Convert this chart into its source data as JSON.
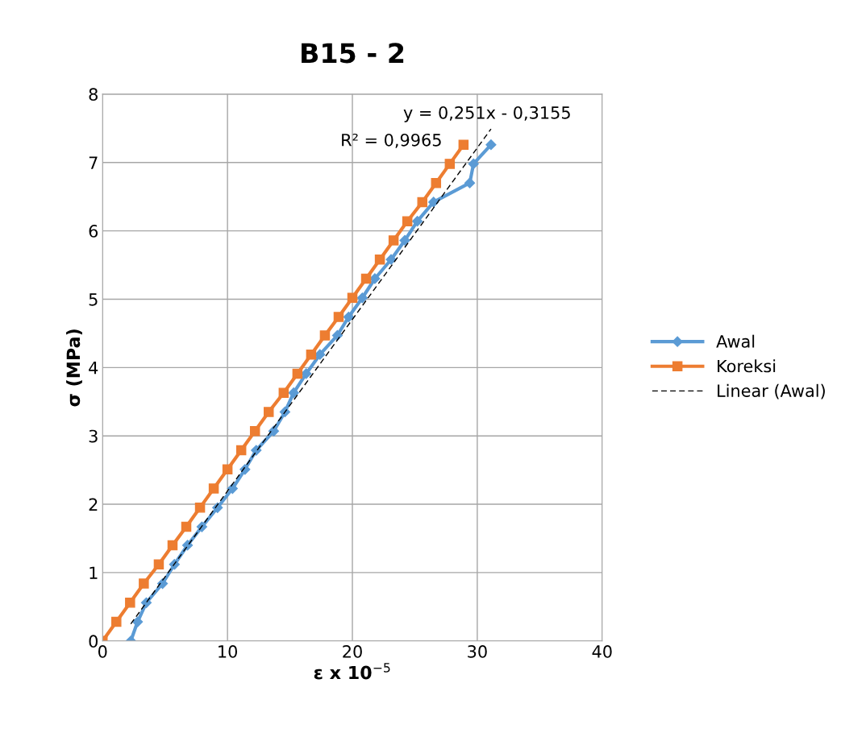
{
  "chart_data": {
    "type": "line",
    "title": "B15 - 2",
    "xlabel": "ε x 10$^{−5}$",
    "ylabel": "σ (MPa)",
    "xlim": [
      0,
      40
    ],
    "xticks": [
      0,
      10,
      20,
      30,
      40
    ],
    "ylim": [
      0,
      8
    ],
    "yticks": [
      0,
      1,
      2,
      3,
      4,
      5,
      6,
      7,
      8
    ],
    "grid": true,
    "legend": "right",
    "annotations": [
      "y = 0,251x - 0,3155",
      "R² = 0,9965"
    ],
    "series": [
      {
        "name": "Awal",
        "color": "#5b9bd5",
        "marker": "diamond",
        "line_style": "solid",
        "x": [
          2.26,
          2.8,
          3.5,
          4.8,
          5.75,
          6.8,
          7.95,
          9.2,
          10.4,
          11.4,
          12.3,
          13.7,
          14.6,
          15.3,
          16.3,
          17.4,
          18.8,
          19.7,
          20.8,
          21.8,
          23.1,
          24.2,
          25.2,
          26.5,
          29.4,
          29.7,
          31.1
        ],
        "values": [
          0,
          0.28,
          0.56,
          0.84,
          1.12,
          1.4,
          1.67,
          1.95,
          2.23,
          2.51,
          2.79,
          3.07,
          3.35,
          3.63,
          3.91,
          4.19,
          4.47,
          4.74,
          5.02,
          5.3,
          5.58,
          5.86,
          6.14,
          6.42,
          6.7,
          6.98,
          7.26
        ]
      },
      {
        "name": "Koreksi",
        "color": "#ed7d31",
        "marker": "square",
        "line_style": "solid",
        "x": [
          0,
          1.1,
          2.2,
          3.3,
          4.5,
          5.6,
          6.7,
          7.8,
          8.9,
          10.0,
          11.1,
          12.2,
          13.3,
          14.5,
          15.6,
          16.7,
          17.8,
          18.9,
          20.0,
          21.1,
          22.2,
          23.3,
          24.4,
          25.6,
          26.7,
          27.8,
          28.9
        ],
        "values": [
          0,
          0.28,
          0.56,
          0.84,
          1.12,
          1.4,
          1.67,
          1.95,
          2.23,
          2.51,
          2.79,
          3.07,
          3.35,
          3.63,
          3.91,
          4.19,
          4.47,
          4.74,
          5.02,
          5.3,
          5.58,
          5.86,
          6.14,
          6.42,
          6.7,
          6.98,
          7.26
        ]
      },
      {
        "name": "Linear (Awal)",
        "color": "#000000",
        "marker": "none",
        "line_style": "dashed",
        "x": [
          2.26,
          31.1
        ],
        "values": [
          0.25,
          7.49
        ]
      }
    ]
  }
}
